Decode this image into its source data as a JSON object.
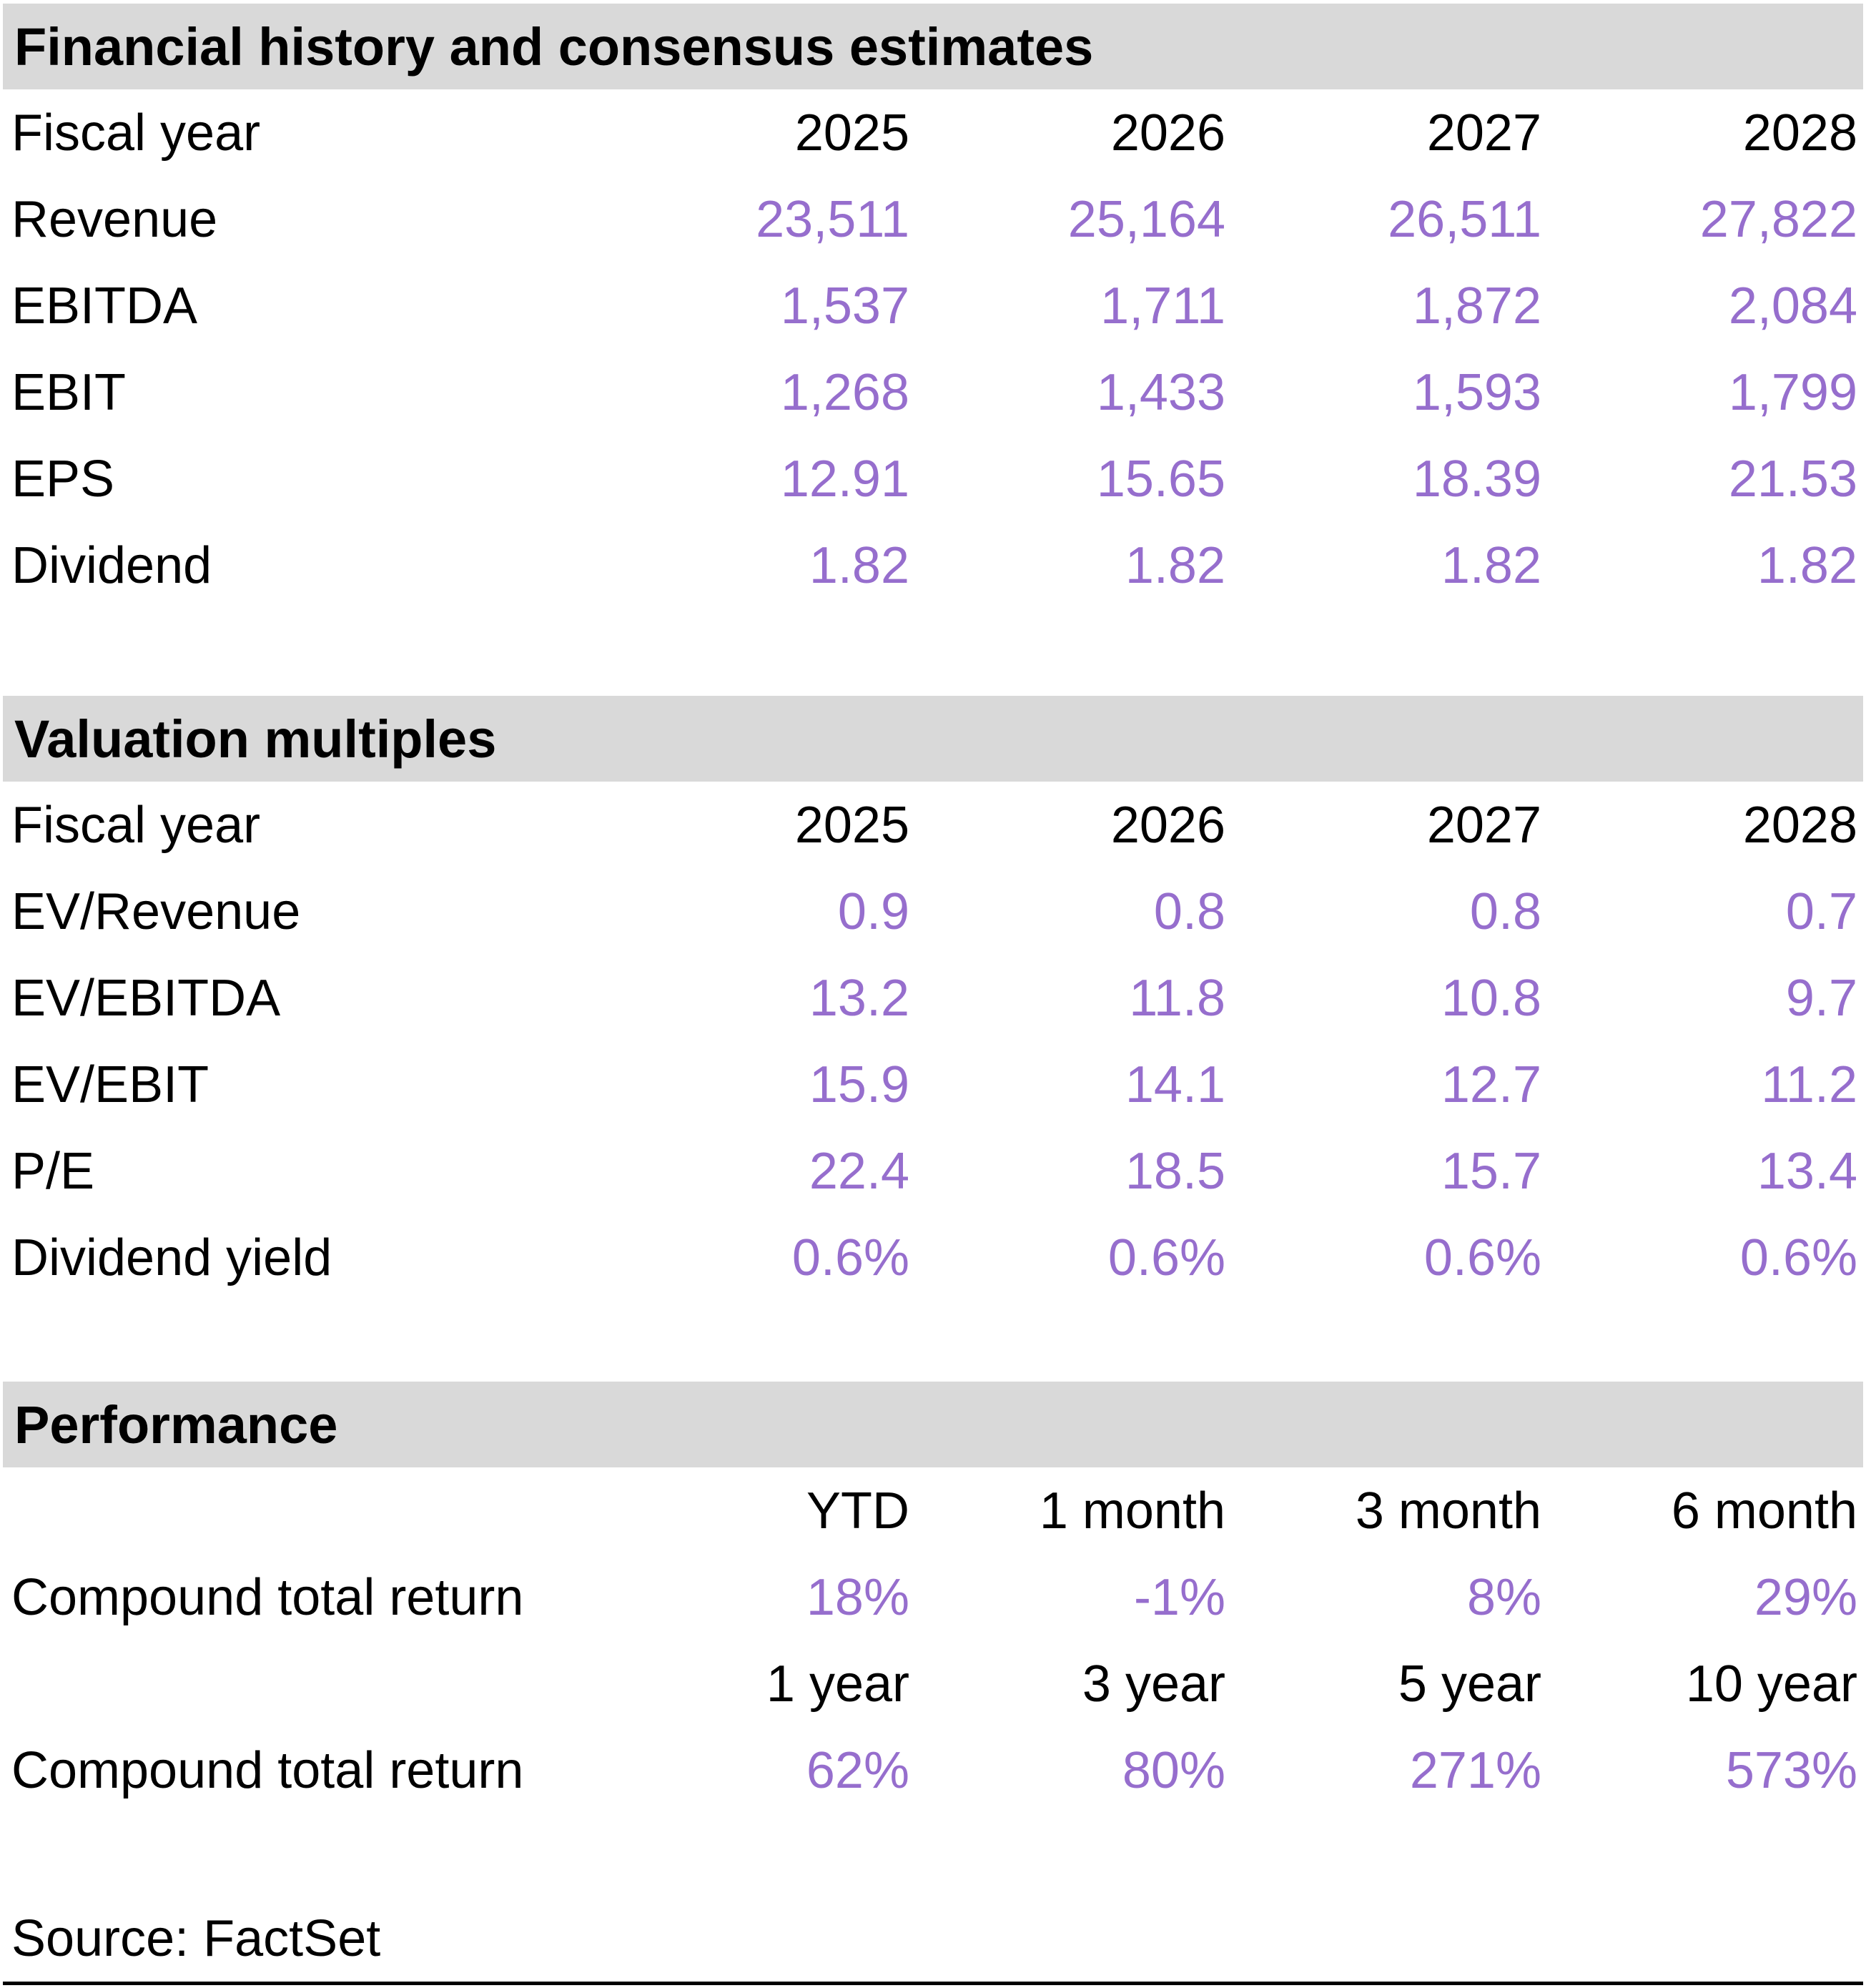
{
  "colors": {
    "accent": "#966ECD",
    "header_bg": "#D9D9D9",
    "text": "#000000"
  },
  "financial": {
    "title": "Financial history and consensus estimates",
    "header_label": "Fiscal year",
    "columns": [
      "2025",
      "2026",
      "2027",
      "2028"
    ],
    "rows": [
      {
        "label": "Revenue",
        "values": [
          "23,511",
          "25,164",
          "26,511",
          "27,822"
        ]
      },
      {
        "label": "EBITDA",
        "values": [
          "1,537",
          "1,711",
          "1,872",
          "2,084"
        ]
      },
      {
        "label": "EBIT",
        "values": [
          "1,268",
          "1,433",
          "1,593",
          "1,799"
        ]
      },
      {
        "label": "EPS",
        "values": [
          "12.91",
          "15.65",
          "18.39",
          "21.53"
        ]
      },
      {
        "label": "Dividend",
        "values": [
          "1.82",
          "1.82",
          "1.82",
          "1.82"
        ]
      }
    ]
  },
  "valuation": {
    "title": "Valuation multiples",
    "header_label": "Fiscal year",
    "columns": [
      "2025",
      "2026",
      "2027",
      "2028"
    ],
    "rows": [
      {
        "label": "EV/Revenue",
        "values": [
          "0.9",
          "0.8",
          "0.8",
          "0.7"
        ]
      },
      {
        "label": "EV/EBITDA",
        "values": [
          "13.2",
          "11.8",
          "10.8",
          "9.7"
        ]
      },
      {
        "label": "EV/EBIT",
        "values": [
          "15.9",
          "14.1",
          "12.7",
          "11.2"
        ]
      },
      {
        "label": "P/E",
        "values": [
          "22.4",
          "18.5",
          "15.7",
          "13.4"
        ]
      },
      {
        "label": "Dividend yield",
        "values": [
          "0.6%",
          "0.6%",
          "0.6%",
          "0.6%"
        ]
      }
    ]
  },
  "performance": {
    "title": "Performance",
    "groups": [
      {
        "columns": [
          "YTD",
          "1 month",
          "3 month",
          "6 month"
        ],
        "row_label": "Compound total return",
        "values": [
          "18%",
          "-1%",
          "8%",
          "29%"
        ]
      },
      {
        "columns": [
          "1 year",
          "3 year",
          "5 year",
          "10 year"
        ],
        "row_label": "Compound total return",
        "values": [
          "62%",
          "80%",
          "271%",
          "573%"
        ]
      }
    ]
  },
  "footer": {
    "source": "Source: FactSet"
  }
}
